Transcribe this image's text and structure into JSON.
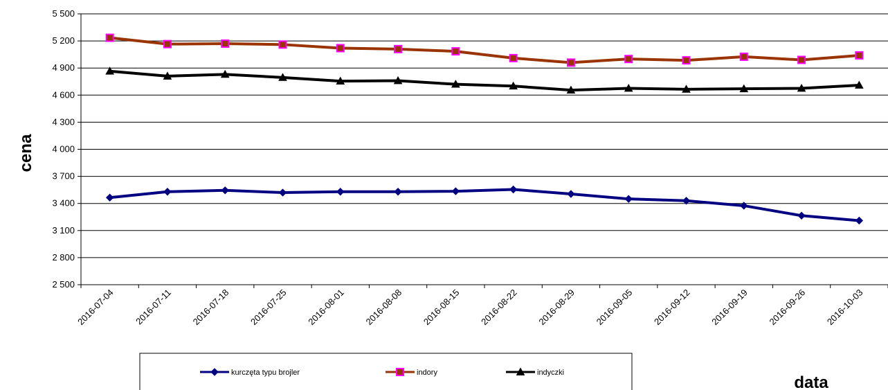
{
  "chart_data": {
    "type": "line",
    "title": "",
    "xlabel": "data",
    "ylabel": "cena",
    "ylim": [
      2500,
      5500
    ],
    "ytick_step": 300,
    "ytick_labels": [
      "2 500",
      "2 800",
      "3 100",
      "3 400",
      "3 700",
      "4 000",
      "4 300",
      "4 600",
      "4 900",
      "5 200",
      "5 500"
    ],
    "grid": "horizontal",
    "legend_position": "bottom",
    "categories": [
      "2016-07-04",
      "2016-07-11",
      "2016-07-18",
      "2016-07-25",
      "2016-08-01",
      "2016-08-08",
      "2016-08-15",
      "2016-08-22",
      "2016-08-29",
      "2016-09-05",
      "2016-09-12",
      "2016-09-19",
      "2016-09-26",
      "2016-10-03"
    ],
    "series": [
      {
        "name": "kurczęta typu brojler",
        "color": "#000080",
        "marker": "diamond",
        "values": [
          3465,
          3530,
          3545,
          3520,
          3530,
          3530,
          3535,
          3555,
          3505,
          3450,
          3430,
          3375,
          3265,
          3210
        ]
      },
      {
        "name": "indory",
        "color": "#993300",
        "marker_color": "#ff00ff",
        "marker": "square",
        "values": [
          5235,
          5165,
          5170,
          5160,
          5120,
          5110,
          5085,
          5010,
          4960,
          5000,
          4985,
          5025,
          4990,
          5040
        ]
      },
      {
        "name": "indyczki",
        "color": "#000000",
        "marker": "triangle",
        "values": [
          4865,
          4810,
          4830,
          4795,
          4755,
          4760,
          4720,
          4700,
          4655,
          4675,
          4665,
          4670,
          4675,
          4710
        ]
      }
    ]
  }
}
